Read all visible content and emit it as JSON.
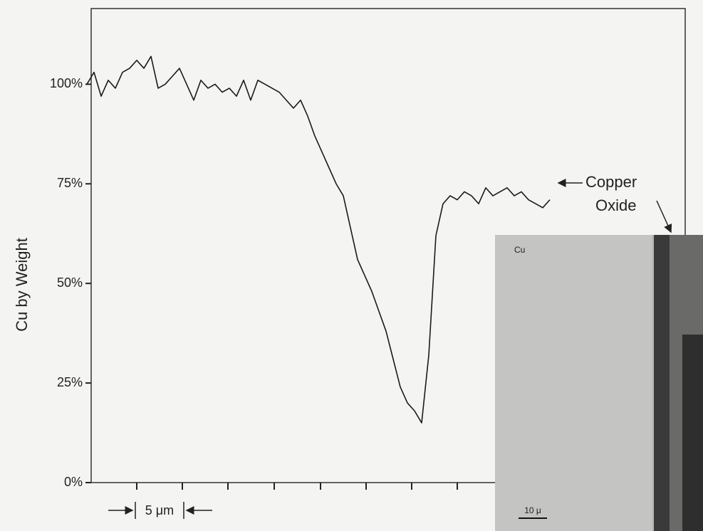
{
  "chart_data": {
    "type": "line",
    "y_label": "Cu by Weight",
    "ylim": [
      0,
      119
    ],
    "yticks": [
      {
        "value": 0,
        "label": "0%"
      },
      {
        "value": 25,
        "label": "25%"
      },
      {
        "value": 50,
        "label": "50%"
      },
      {
        "value": 75,
        "label": "75%"
      },
      {
        "value": 100,
        "label": "100%"
      }
    ],
    "color": "#1a1a1a",
    "values": [
      100,
      103,
      97,
      101,
      99,
      103,
      104,
      106,
      104,
      107,
      99,
      100,
      102,
      104,
      100,
      96,
      101,
      99,
      100,
      98,
      99,
      97,
      101,
      96,
      101,
      100,
      99,
      98,
      96,
      94,
      96,
      92,
      87,
      83,
      79,
      75,
      72,
      64,
      56,
      52,
      48,
      43,
      38,
      31,
      24,
      20,
      18,
      15,
      32,
      62,
      70,
      72,
      71,
      73,
      72,
      70,
      74,
      72,
      73,
      74,
      72,
      73,
      71,
      70,
      69,
      71
    ],
    "annotations": [
      "Copper",
      "Oxide"
    ],
    "scale_bar": "5 μm",
    "inset_labels": [
      "Cu",
      "10 μ"
    ]
  }
}
